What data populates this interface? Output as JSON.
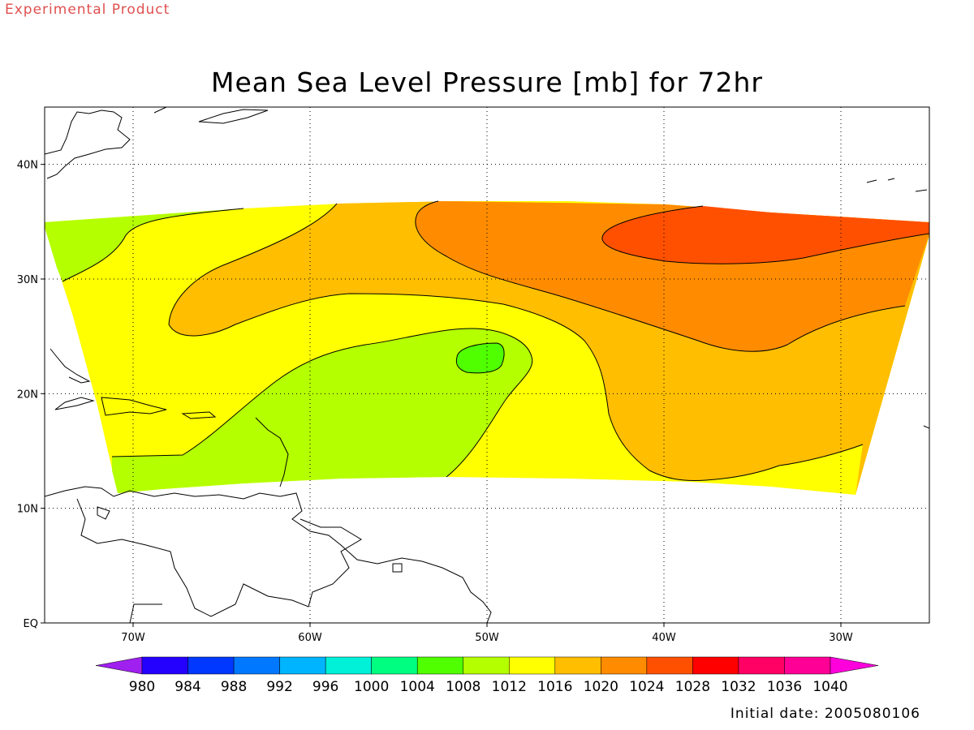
{
  "watermark": "Experimental Product",
  "title": "Mean Sea Level Pressure [mb] for 72hr",
  "footer": "Initial date: 2005080106",
  "map": {
    "lon_range": [
      -75,
      -25
    ],
    "lat_range": [
      0,
      45
    ],
    "lon_ticks": [
      {
        "value": -70,
        "label": "70W"
      },
      {
        "value": -60,
        "label": "60W"
      },
      {
        "value": -50,
        "label": "50W"
      },
      {
        "value": -40,
        "label": "40W"
      },
      {
        "value": -30,
        "label": "30W"
      }
    ],
    "lat_ticks": [
      {
        "value": 0,
        "label": "EQ"
      },
      {
        "value": 10,
        "label": "10N"
      },
      {
        "value": 20,
        "label": "20N"
      },
      {
        "value": 30,
        "label": "30N"
      },
      {
        "value": 40,
        "label": "40N"
      }
    ],
    "grid": "dotted"
  },
  "colorbar": {
    "labels": [
      "980",
      "984",
      "988",
      "992",
      "996",
      "1000",
      "1004",
      "1008",
      "1012",
      "1016",
      "1020",
      "1024",
      "1028",
      "1032",
      "1036",
      "1040"
    ],
    "colors": [
      "#a020f0",
      "#2400ff",
      "#0038ff",
      "#0078ff",
      "#00b4ff",
      "#00f0d8",
      "#00ff80",
      "#50ff00",
      "#b4ff00",
      "#ffff00",
      "#ffbe00",
      "#ff8c00",
      "#ff5000",
      "#ff0000",
      "#ff0064",
      "#ff0096",
      "#ff00dc"
    ]
  },
  "fill_colors": {
    "band_1008_1012": "#b4ff00",
    "band_1012_1016": "#ffff00",
    "band_1016_1020": "#ffbe00",
    "band_1020_1024": "#ff8c00",
    "band_1024_1028": "#ff5000",
    "band_1004_1008": "#50ff00"
  }
}
